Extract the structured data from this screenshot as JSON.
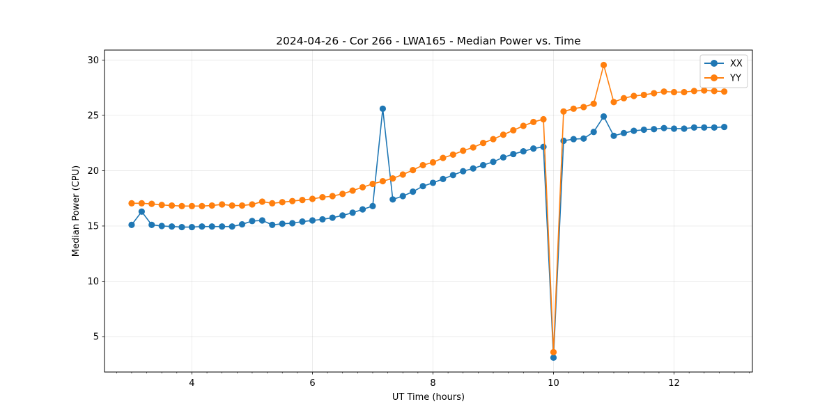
{
  "chart_data": {
    "type": "line",
    "title": "2024-04-26 - Cor 266 - LWA165 - Median Power vs. Time",
    "xlabel": "UT Time (hours)",
    "ylabel": "Median Power (CPU)",
    "xlim": [
      2.55,
      13.3
    ],
    "ylim": [
      1.8,
      30.9
    ],
    "xticks": [
      4,
      6,
      8,
      10,
      12
    ],
    "xtick_labels": [
      "4",
      "6",
      "8",
      "10",
      "12"
    ],
    "x_minor_step": 0.25,
    "yticks": [
      5,
      10,
      15,
      20,
      25,
      30
    ],
    "ytick_labels": [
      "5",
      "10",
      "15",
      "20",
      "25",
      "30"
    ],
    "grid": true,
    "legend_position": "top-right",
    "x": [
      3.0,
      3.167,
      3.333,
      3.5,
      3.667,
      3.833,
      4.0,
      4.167,
      4.333,
      4.5,
      4.667,
      4.833,
      5.0,
      5.167,
      5.333,
      5.5,
      5.667,
      5.833,
      6.0,
      6.167,
      6.333,
      6.5,
      6.667,
      6.833,
      7.0,
      7.167,
      7.333,
      7.5,
      7.667,
      7.833,
      8.0,
      8.167,
      8.333,
      8.5,
      8.667,
      8.833,
      9.0,
      9.167,
      9.333,
      9.5,
      9.667,
      9.833,
      10.0,
      10.167,
      10.333,
      10.5,
      10.667,
      10.833,
      11.0,
      11.167,
      11.333,
      11.5,
      11.667,
      11.833,
      12.0,
      12.167,
      12.333,
      12.5,
      12.667,
      12.833
    ],
    "series": [
      {
        "name": "XX",
        "color": "#1f77b4",
        "values": [
          15.1,
          16.3,
          15.1,
          15.0,
          14.95,
          14.9,
          14.9,
          14.95,
          14.95,
          14.95,
          14.95,
          15.15,
          15.45,
          15.5,
          15.1,
          15.2,
          15.25,
          15.4,
          15.5,
          15.6,
          15.75,
          15.95,
          16.2,
          16.5,
          16.8,
          25.6,
          17.4,
          17.7,
          18.1,
          18.6,
          18.9,
          19.25,
          19.6,
          19.95,
          20.2,
          20.5,
          20.8,
          21.2,
          21.5,
          21.75,
          22.0,
          22.15,
          3.1,
          22.7,
          22.85,
          22.9,
          23.5,
          24.9,
          23.15,
          23.4,
          23.6,
          23.7,
          23.75,
          23.85,
          23.8,
          23.8,
          23.9,
          23.9,
          23.9,
          23.95
        ]
      },
      {
        "name": "YY",
        "color": "#ff7f0e",
        "values": [
          17.05,
          17.05,
          17.0,
          16.9,
          16.85,
          16.8,
          16.8,
          16.8,
          16.85,
          16.95,
          16.85,
          16.85,
          16.95,
          17.2,
          17.05,
          17.15,
          17.25,
          17.35,
          17.45,
          17.6,
          17.7,
          17.9,
          18.2,
          18.5,
          18.8,
          19.05,
          19.3,
          19.65,
          20.05,
          20.5,
          20.75,
          21.15,
          21.45,
          21.8,
          22.1,
          22.5,
          22.85,
          23.25,
          23.65,
          24.05,
          24.4,
          24.65,
          3.6,
          25.35,
          25.6,
          25.75,
          26.05,
          29.55,
          26.2,
          26.55,
          26.75,
          26.85,
          27.0,
          27.15,
          27.1,
          27.1,
          27.2,
          27.25,
          27.2,
          27.15
        ]
      }
    ]
  }
}
